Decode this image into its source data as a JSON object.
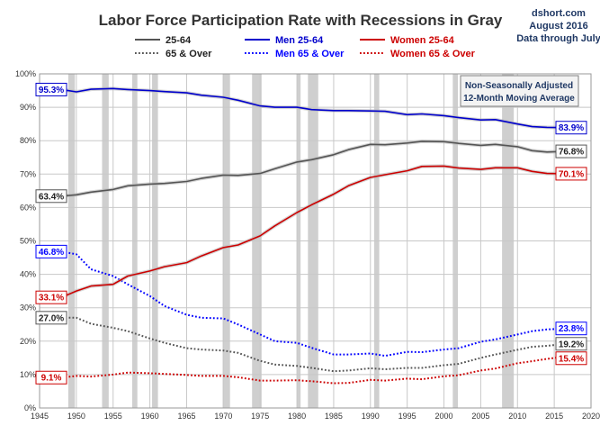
{
  "chart_data": {
    "type": "line",
    "title": "Labor Force Participation Rate with Recessions in Gray",
    "source_lines": [
      "dshort.com",
      "August 2016",
      "Data through July"
    ],
    "note_lines": [
      "Non-Seasonally Adjusted",
      "12-Month Moving Average"
    ],
    "x_range": [
      1945,
      2020
    ],
    "y_range": [
      0,
      100
    ],
    "x_ticks": [
      1945,
      1950,
      1955,
      1960,
      1965,
      1970,
      1975,
      1980,
      1985,
      1990,
      1995,
      2000,
      2005,
      2010,
      2015,
      2020
    ],
    "x_tick_labels": [
      "1945",
      "1950",
      "1955",
      "1960",
      "1965",
      "1970",
      "1975",
      "1980",
      "1985",
      "1990",
      "1995",
      "2000",
      "2005",
      "2010",
      "2015",
      "2020"
    ],
    "y_ticks": [
      0,
      10,
      20,
      30,
      40,
      50,
      60,
      70,
      80,
      90,
      100
    ],
    "y_tick_labels": [
      "0%",
      "10%",
      "20%",
      "30%",
      "40%",
      "50%",
      "60%",
      "70%",
      "80%",
      "90%",
      "100%"
    ],
    "grid": true,
    "legend_position": "top",
    "recessions": [
      [
        1948.9,
        1949.8
      ],
      [
        1953.5,
        1954.4
      ],
      [
        1957.6,
        1958.3
      ],
      [
        1960.3,
        1961.1
      ],
      [
        1969.9,
        1970.9
      ],
      [
        1973.9,
        1975.2
      ],
      [
        1980.0,
        1980.5
      ],
      [
        1981.5,
        1982.9
      ],
      [
        1990.5,
        1991.2
      ],
      [
        2001.2,
        2001.9
      ],
      [
        2007.9,
        2009.5
      ]
    ],
    "series": [
      {
        "name": "25-64",
        "color": "#555555",
        "style": "solid",
        "x": [
          1948,
          1950,
          1952,
          1955,
          1957,
          1960,
          1962,
          1965,
          1967,
          1970,
          1972,
          1975,
          1977,
          1980,
          1982,
          1985,
          1987,
          1990,
          1992,
          1995,
          1997,
          2000,
          2002,
          2005,
          2007,
          2010,
          2012,
          2014,
          2016.5
        ],
        "y": [
          63.4,
          63.8,
          64.6,
          65.4,
          66.5,
          67.0,
          67.2,
          67.8,
          68.7,
          69.7,
          69.6,
          70.2,
          71.6,
          73.6,
          74.3,
          75.8,
          77.3,
          78.9,
          78.8,
          79.3,
          79.8,
          79.7,
          79.2,
          78.6,
          78.9,
          78.2,
          77.0,
          76.6,
          76.8
        ],
        "start_label": "63.4%",
        "end_label": "76.8%"
      },
      {
        "name": "65 & Over",
        "color": "#555555",
        "style": "dotted",
        "x": [
          1948,
          1950,
          1952,
          1955,
          1957,
          1960,
          1962,
          1965,
          1967,
          1970,
          1972,
          1975,
          1977,
          1980,
          1982,
          1985,
          1987,
          1990,
          1992,
          1995,
          1997,
          2000,
          2002,
          2005,
          2007,
          2010,
          2012,
          2014,
          2016.5
        ],
        "y": [
          27.0,
          27.0,
          25.2,
          24.0,
          23.0,
          20.8,
          19.5,
          17.9,
          17.5,
          17.2,
          16.5,
          14.1,
          13.0,
          12.6,
          12.0,
          11.0,
          11.2,
          11.9,
          11.6,
          12.0,
          12.0,
          12.8,
          13.2,
          15.0,
          16.0,
          17.4,
          18.3,
          18.6,
          19.2
        ],
        "start_label": "27.0%",
        "end_label": "19.2%"
      },
      {
        "name": "Men 25-64",
        "color": "#0000cc",
        "style": "solid",
        "x": [
          1948,
          1950,
          1952,
          1955,
          1957,
          1960,
          1962,
          1965,
          1967,
          1970,
          1972,
          1975,
          1977,
          1980,
          1982,
          1985,
          1987,
          1990,
          1992,
          1995,
          1997,
          2000,
          2002,
          2005,
          2007,
          2010,
          2012,
          2014,
          2016.5
        ],
        "y": [
          95.3,
          94.6,
          95.4,
          95.6,
          95.3,
          95.0,
          94.7,
          94.3,
          93.6,
          93.0,
          92.1,
          90.4,
          90.0,
          90.0,
          89.3,
          89.0,
          89.0,
          88.9,
          88.8,
          87.8,
          88.0,
          87.5,
          86.9,
          86.2,
          86.3,
          85.0,
          84.2,
          84.0,
          83.9
        ],
        "start_label": "95.3%",
        "end_label": "83.9%"
      },
      {
        "name": "Men 65 & Over",
        "color": "#0000ff",
        "style": "dotted",
        "x": [
          1948,
          1950,
          1952,
          1955,
          1957,
          1960,
          1962,
          1965,
          1967,
          1970,
          1972,
          1975,
          1977,
          1980,
          1982,
          1985,
          1987,
          1990,
          1992,
          1995,
          1997,
          2000,
          2002,
          2005,
          2007,
          2010,
          2012,
          2014,
          2016.5
        ],
        "y": [
          46.8,
          46.0,
          41.5,
          39.5,
          37.0,
          33.5,
          30.5,
          27.9,
          27.0,
          26.8,
          25.0,
          22.0,
          20.0,
          19.5,
          18.0,
          16.0,
          16.0,
          16.3,
          15.6,
          16.8,
          16.7,
          17.5,
          17.9,
          19.8,
          20.5,
          22.0,
          23.0,
          23.5,
          23.8
        ],
        "start_label": "46.8%",
        "end_label": "23.8%"
      },
      {
        "name": "Women 25-64",
        "color": "#cc0000",
        "style": "solid",
        "x": [
          1948,
          1950,
          1952,
          1955,
          1957,
          1960,
          1962,
          1965,
          1967,
          1970,
          1972,
          1975,
          1977,
          1980,
          1982,
          1985,
          1987,
          1990,
          1992,
          1995,
          1997,
          2000,
          2002,
          2005,
          2007,
          2010,
          2012,
          2014,
          2016.5
        ],
        "y": [
          33.1,
          35.0,
          36.5,
          37.0,
          39.5,
          41.0,
          42.3,
          43.5,
          45.5,
          48.0,
          48.8,
          51.5,
          54.5,
          58.5,
          60.8,
          64.0,
          66.5,
          69.0,
          69.8,
          71.0,
          72.3,
          72.4,
          71.8,
          71.4,
          71.9,
          71.9,
          70.8,
          70.2,
          70.1
        ],
        "start_label": "33.1%",
        "end_label": "70.1%"
      },
      {
        "name": "Women 65 & Over",
        "color": "#cc0000",
        "style": "dotted",
        "x": [
          1948,
          1950,
          1952,
          1955,
          1957,
          1960,
          1962,
          1965,
          1967,
          1970,
          1972,
          1975,
          1977,
          1980,
          1982,
          1985,
          1987,
          1990,
          1992,
          1995,
          1997,
          2000,
          2002,
          2005,
          2007,
          2010,
          2012,
          2014,
          2016.5
        ],
        "y": [
          9.1,
          9.6,
          9.4,
          10.0,
          10.6,
          10.4,
          10.2,
          9.9,
          9.6,
          9.6,
          9.2,
          8.2,
          8.2,
          8.3,
          8.0,
          7.4,
          7.5,
          8.4,
          8.2,
          8.8,
          8.6,
          9.5,
          9.8,
          11.2,
          11.8,
          13.4,
          14.0,
          14.7,
          15.4
        ],
        "start_label": "9.1%",
        "end_label": "15.4%"
      }
    ]
  }
}
